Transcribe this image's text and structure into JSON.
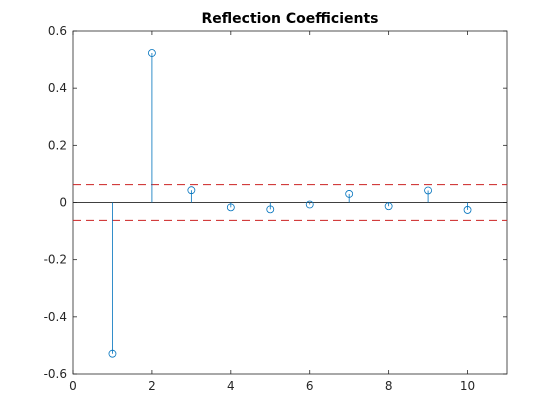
{
  "chart_data": {
    "type": "stem",
    "title": "Reflection Coefficients",
    "xlabel": "",
    "ylabel": "",
    "xlim": [
      0,
      11
    ],
    "ylim": [
      -0.6,
      0.6
    ],
    "xticks": [
      0,
      2,
      4,
      6,
      8,
      10
    ],
    "yticks": [
      -0.6,
      -0.4,
      -0.2,
      0,
      0.2,
      0.4,
      0.6
    ],
    "grid": false,
    "legend": "none",
    "x": [
      1,
      2,
      3,
      4,
      5,
      6,
      7,
      8,
      9,
      10
    ],
    "y": [
      -0.529,
      0.523,
      0.043,
      -0.017,
      -0.024,
      -0.007,
      0.03,
      -0.013,
      0.042,
      -0.026
    ],
    "reference_lines": [
      {
        "y": 0.0625,
        "style": "dashed"
      },
      {
        "y": -0.0625,
        "style": "dashed"
      }
    ],
    "colors": {
      "series": "#0072BD",
      "bounds": "#D95319",
      "bounds_dash": "#CC2222",
      "axes": "#262626",
      "zero_line": "#000000"
    }
  }
}
